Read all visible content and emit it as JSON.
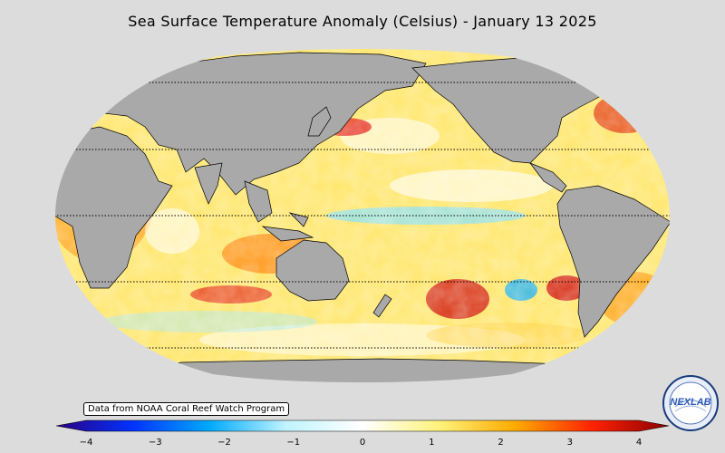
{
  "title": "Sea Surface Temperature Anomaly (Celsius) - January 13 2025",
  "source_note": "Data from NOAA Coral Reef Watch Program",
  "logo_text": "NEXLAB",
  "colorbar": {
    "min": -4,
    "max": 4,
    "ticks": [
      "−4",
      "−3",
      "−2",
      "−1",
      "0",
      "1",
      "2",
      "3",
      "4"
    ],
    "colors": [
      "#2a0080",
      "#0033ff",
      "#00aaff",
      "#bff4ff",
      "#ffffff",
      "#fff27a",
      "#ffaa00",
      "#ff2200",
      "#8b0000"
    ]
  },
  "map": {
    "projection": "Robinson",
    "land_color": "#a9a9a9",
    "background": "#dcdcdc"
  }
}
